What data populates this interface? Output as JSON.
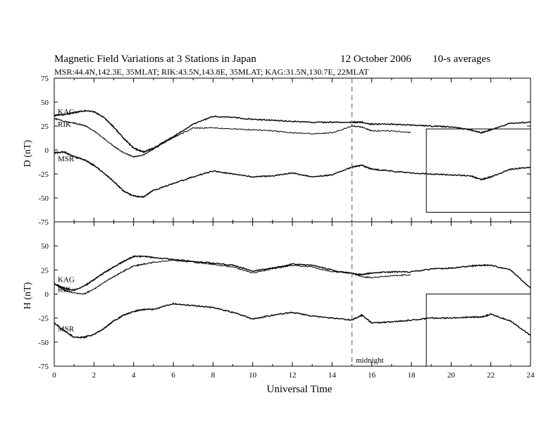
{
  "header": {
    "title": "Magnetic Field Variations at 3 Stations in Japan",
    "date": "12 October 2006",
    "averaging": "10-s averages",
    "stations_line": "MSR:44.4N,142.3E, 35MLAT;   RIK:43.5N,143.8E, 35MLAT;   KAG:31.5N,130.7E, 22MLAT"
  },
  "annotation": {
    "midnight": "midnight"
  },
  "chart_data": [
    {
      "type": "line",
      "panel": "D",
      "ylabel": "D (nT)",
      "ylim": [
        -75,
        75
      ],
      "yticks": [
        -75,
        -50,
        -25,
        0,
        25,
        50,
        75
      ],
      "xlim": [
        0,
        24
      ],
      "x": [
        0,
        0.5,
        1,
        1.5,
        2,
        2.5,
        3,
        3.5,
        4,
        4.5,
        5,
        6,
        7,
        8,
        9,
        10,
        11,
        12,
        13,
        14,
        15,
        15.5,
        16,
        17,
        18,
        19,
        20,
        21,
        21.5,
        22,
        23,
        24
      ],
      "series": [
        {
          "name": "KAG",
          "values": [
            36,
            37,
            39,
            41,
            40,
            34,
            24,
            12,
            2,
            -2,
            2,
            14,
            27,
            35,
            34,
            32,
            31,
            30,
            29,
            29,
            29,
            29,
            27,
            27,
            26,
            25,
            24,
            21,
            18,
            21,
            28,
            29
          ]
        },
        {
          "name": "RIK",
          "values": [
            33,
            30,
            28,
            26,
            20,
            12,
            4,
            -3,
            -7,
            -5,
            1,
            13,
            23,
            23,
            22,
            21,
            20,
            18,
            17,
            18,
            25,
            24,
            20,
            20,
            18,
            null,
            null,
            null,
            null,
            null,
            null,
            null
          ]
        },
        {
          "name": "MSR",
          "values": [
            -3,
            -2,
            -7,
            -10,
            -16,
            -24,
            -33,
            -43,
            -48,
            -49,
            -42,
            -35,
            -28,
            -22,
            -25,
            -28,
            -27,
            -24,
            -28,
            -26,
            -18,
            -16,
            -20,
            -22,
            -24,
            -25,
            -26,
            -27,
            -31,
            -28,
            -20,
            -18
          ]
        }
      ],
      "annotation_rect": {
        "x": [
          18.75,
          24
        ],
        "y": [
          -65,
          22
        ]
      }
    },
    {
      "type": "line",
      "panel": "H",
      "ylabel": "H (nT)",
      "xlabel": "Universal Time",
      "ylim": [
        -75,
        75
      ],
      "yticks": [
        -75,
        -50,
        -25,
        0,
        25,
        50,
        75
      ],
      "xlim": [
        0,
        24
      ],
      "xticks": [
        0,
        2,
        4,
        6,
        8,
        10,
        12,
        14,
        16,
        18,
        20,
        22,
        24
      ],
      "x": [
        0,
        0.5,
        1,
        1.5,
        2,
        2.5,
        3,
        3.5,
        4,
        4.5,
        5,
        6,
        7,
        8,
        9,
        10,
        11,
        12,
        13,
        14,
        15,
        15.5,
        16,
        17,
        18,
        19,
        20,
        21,
        21.5,
        22,
        23,
        24
      ],
      "series": [
        {
          "name": "KAG",
          "values": [
            11,
            6,
            4,
            8,
            15,
            22,
            28,
            34,
            39,
            39,
            38,
            36,
            34,
            32,
            30,
            24,
            27,
            31,
            30,
            25,
            21,
            20,
            22,
            23,
            23,
            26,
            27,
            29,
            30,
            30,
            25,
            6
          ]
        },
        {
          "name": "RIK",
          "values": [
            11,
            4,
            1,
            0,
            5,
            12,
            18,
            24,
            29,
            31,
            33,
            35,
            33,
            31,
            28,
            22,
            26,
            30,
            28,
            23,
            22,
            18,
            17,
            19,
            20,
            null,
            null,
            null,
            null,
            null,
            null,
            null
          ]
        },
        {
          "name": "MSR",
          "values": [
            -30,
            -38,
            -45,
            -45,
            -42,
            -36,
            -28,
            -22,
            -18,
            -16,
            -16,
            -10,
            -12,
            -14,
            -19,
            -26,
            -22,
            -19,
            -23,
            -25,
            -27,
            -22,
            -30,
            -29,
            -27,
            -25,
            -25,
            -24,
            -24,
            -21,
            -28,
            -43
          ]
        }
      ],
      "annotation_rect": {
        "x": [
          18.75,
          24
        ],
        "y": [
          -75,
          0
        ]
      },
      "vline": {
        "x": 15,
        "style": "dashed"
      }
    }
  ]
}
